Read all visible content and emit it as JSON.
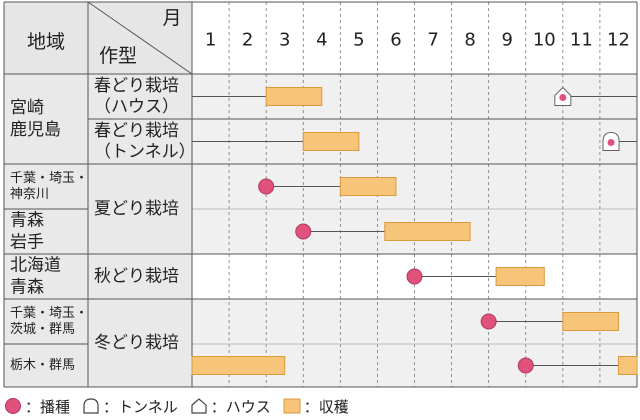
{
  "chart_data": {
    "type": "gantt",
    "header": {
      "region": "地域",
      "month": "月",
      "type": "作型"
    },
    "months": [
      "1",
      "2",
      "3",
      "4",
      "5",
      "6",
      "7",
      "8",
      "9",
      "10",
      "11",
      "12"
    ],
    "rows": [
      {
        "region": [
          "宮崎",
          "鹿児島"
        ],
        "region_span": 2,
        "type": [
          "春どり栽培",
          "（ハウス）"
        ],
        "type_span": 1,
        "sowing": 11.0,
        "sowing_marker": "house",
        "line_start": 1.0,
        "line_end": 3.0,
        "harvest": [
          [
            3.0,
            4.5
          ]
        ],
        "wrap": true
      },
      {
        "region": [],
        "region_span": 0,
        "type": [
          "春どり栽培",
          "（トンネル）"
        ],
        "type_span": 1,
        "sowing": 12.3,
        "sowing_marker": "tunnel",
        "line_start": 1.0,
        "line_end": 4.0,
        "harvest": [
          [
            4.0,
            5.5
          ]
        ],
        "wrap": true
      },
      {
        "region": [
          "千葉・埼玉・",
          "神奈川"
        ],
        "region_span": 1,
        "type": [
          "夏どり栽培"
        ],
        "type_span": 2,
        "sowing": 3.0,
        "sowing_marker": "sowing",
        "line_start": 3.0,
        "line_end": 5.0,
        "harvest": [
          [
            5.0,
            6.5
          ]
        ],
        "wrap": false
      },
      {
        "region": [
          "青森",
          "岩手"
        ],
        "region_span": 1,
        "type": [],
        "type_span": 0,
        "sowing": 4.0,
        "sowing_marker": "sowing",
        "line_start": 4.0,
        "line_end": 6.2,
        "harvest": [
          [
            6.2,
            8.5
          ]
        ],
        "wrap": false
      },
      {
        "region": [
          "北海道",
          "青森"
        ],
        "region_span": 1,
        "type": [
          "秋どり栽培"
        ],
        "type_span": 1,
        "sowing": 7.0,
        "sowing_marker": "sowing",
        "line_start": 7.0,
        "line_end": 9.2,
        "harvest": [
          [
            9.2,
            10.5
          ]
        ],
        "wrap": false
      },
      {
        "region": [
          "千葉・埼玉・",
          "茨城・群馬"
        ],
        "region_span": 1,
        "type": [
          "冬どり栽培"
        ],
        "type_span": 2,
        "sowing": 9.0,
        "sowing_marker": "sowing",
        "line_start": 9.0,
        "line_end": 11.0,
        "harvest": [
          [
            11.0,
            12.5
          ]
        ],
        "wrap": false
      },
      {
        "region": [
          "栃木・群馬"
        ],
        "region_span": 1,
        "type": [],
        "type_span": 0,
        "sowing": 10.0,
        "sowing_marker": "sowing",
        "line_start": 10.0,
        "line_end": 12.5,
        "harvest": [
          [
            1.0,
            3.5
          ],
          [
            12.5,
            13.0
          ]
        ],
        "wrap": false
      }
    ],
    "legend": [
      {
        "key": "sowing",
        "label": "：播種"
      },
      {
        "key": "tunnel",
        "label": "：トンネル"
      },
      {
        "key": "house",
        "label": "：ハウス"
      },
      {
        "key": "harvest",
        "label": "：収穫"
      }
    ]
  },
  "colors": {
    "sowing": "#e0517b",
    "harvest_fill": "#f7c57a",
    "harvest_stroke": "#d99a3c",
    "header_bg": "#e6e6e6",
    "alt_row_bg": "#f0f0f0",
    "grid": "#555555"
  }
}
